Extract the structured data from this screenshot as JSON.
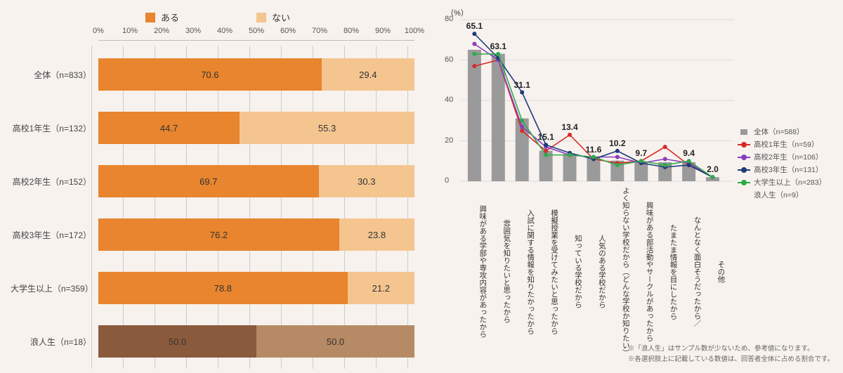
{
  "left_chart": {
    "type": "stacked-bar-horizontal",
    "legend": [
      {
        "label": "ある",
        "color": "#e8852e"
      },
      {
        "label": "ない",
        "color": "#f5c590"
      }
    ],
    "axis_ticks": [
      0,
      10,
      20,
      30,
      40,
      50,
      60,
      70,
      80,
      90,
      100
    ],
    "axis_suffix": "%",
    "categories": [
      {
        "label": "全体（n=833）",
        "a": 70.6,
        "b": 29.4,
        "color_a": "#e8852e",
        "color_b": "#f5c590"
      },
      {
        "label": "高校1年生（n=132）",
        "a": 44.7,
        "b": 55.3,
        "color_a": "#e8852e",
        "color_b": "#f5c590"
      },
      {
        "label": "高校2年生（n=152）",
        "a": 69.7,
        "b": 30.3,
        "color_a": "#e8852e",
        "color_b": "#f5c590"
      },
      {
        "label": "高校3年生（n=172）",
        "a": 76.2,
        "b": 23.8,
        "color_a": "#e8852e",
        "color_b": "#f5c590"
      },
      {
        "label": "大学生以上（n=359）",
        "a": 78.8,
        "b": 21.2,
        "color_a": "#e8852e",
        "color_b": "#f5c590"
      },
      {
        "label": "浪人生（n=18）",
        "a": 50.0,
        "b": 50.0,
        "color_a": "#8a5a3d",
        "color_b": "#b68a64"
      }
    ],
    "grid_color": "#cccccc",
    "bg": "#f7f2ee"
  },
  "right_chart": {
    "type": "bar+line",
    "ylabel": "（%）",
    "ymax": 80,
    "ytick_step": 20,
    "ymin": 0,
    "categories": [
      "興味がある学部や専攻内容があったから",
      "雰囲気を知りたいと思ったから",
      "入試に関する情報を知りたかったから",
      "模擬授業を受けてみたいと思ったから",
      "知っている学校だから",
      "人気のある学校だから",
      "よく知らない学校だから（どんな学校か知りたい）",
      "興味がある部活動やサークルがあったから",
      "たまたま情報を目にしたから",
      "なんとなく面白そうだったから／",
      "その他"
    ],
    "bar_label": "全体（n=588）",
    "bar_color": "#9a9a9a",
    "bar_values": [
      65.1,
      63.1,
      31.1,
      15.1,
      13.4,
      11.6,
      10.2,
      9.7,
      9.4,
      9.4,
      2.0
    ],
    "bar_top_labels": [
      "65.1",
      "63.1",
      "31.1",
      "15.1",
      "13.4",
      "11.6",
      "10.2",
      "9.7",
      "",
      "9.4",
      "2.0"
    ],
    "series": [
      {
        "label": "高校1年生（n=59）",
        "color": "#d62a2a",
        "values": [
          57,
          60,
          25,
          15,
          23,
          11,
          9,
          10,
          17,
          8,
          2
        ]
      },
      {
        "label": "高校2年生（n=106）",
        "color": "#8a3dbb",
        "values": [
          68,
          60,
          27,
          17,
          13,
          12,
          12,
          9,
          11,
          9,
          2
        ]
      },
      {
        "label": "高校3年生（n=131）",
        "color": "#1d3a7a",
        "values": [
          73,
          61,
          44,
          18,
          14,
          11,
          15,
          9,
          7,
          8,
          2
        ]
      },
      {
        "label": "大学生以上（n=283）",
        "color": "#2faa4a",
        "values": [
          63,
          63,
          30,
          13,
          13,
          12,
          8,
          10,
          8,
          10,
          2
        ]
      }
    ],
    "extra_legend": "浪人生（n=9）",
    "grid_color": "#d5d5d5",
    "notes": [
      "※「浪人生」はサンプル数が少ないため、参考値になります。",
      "※各選択肢上に記載している数値は、回答者全体に占める割合です。"
    ]
  }
}
